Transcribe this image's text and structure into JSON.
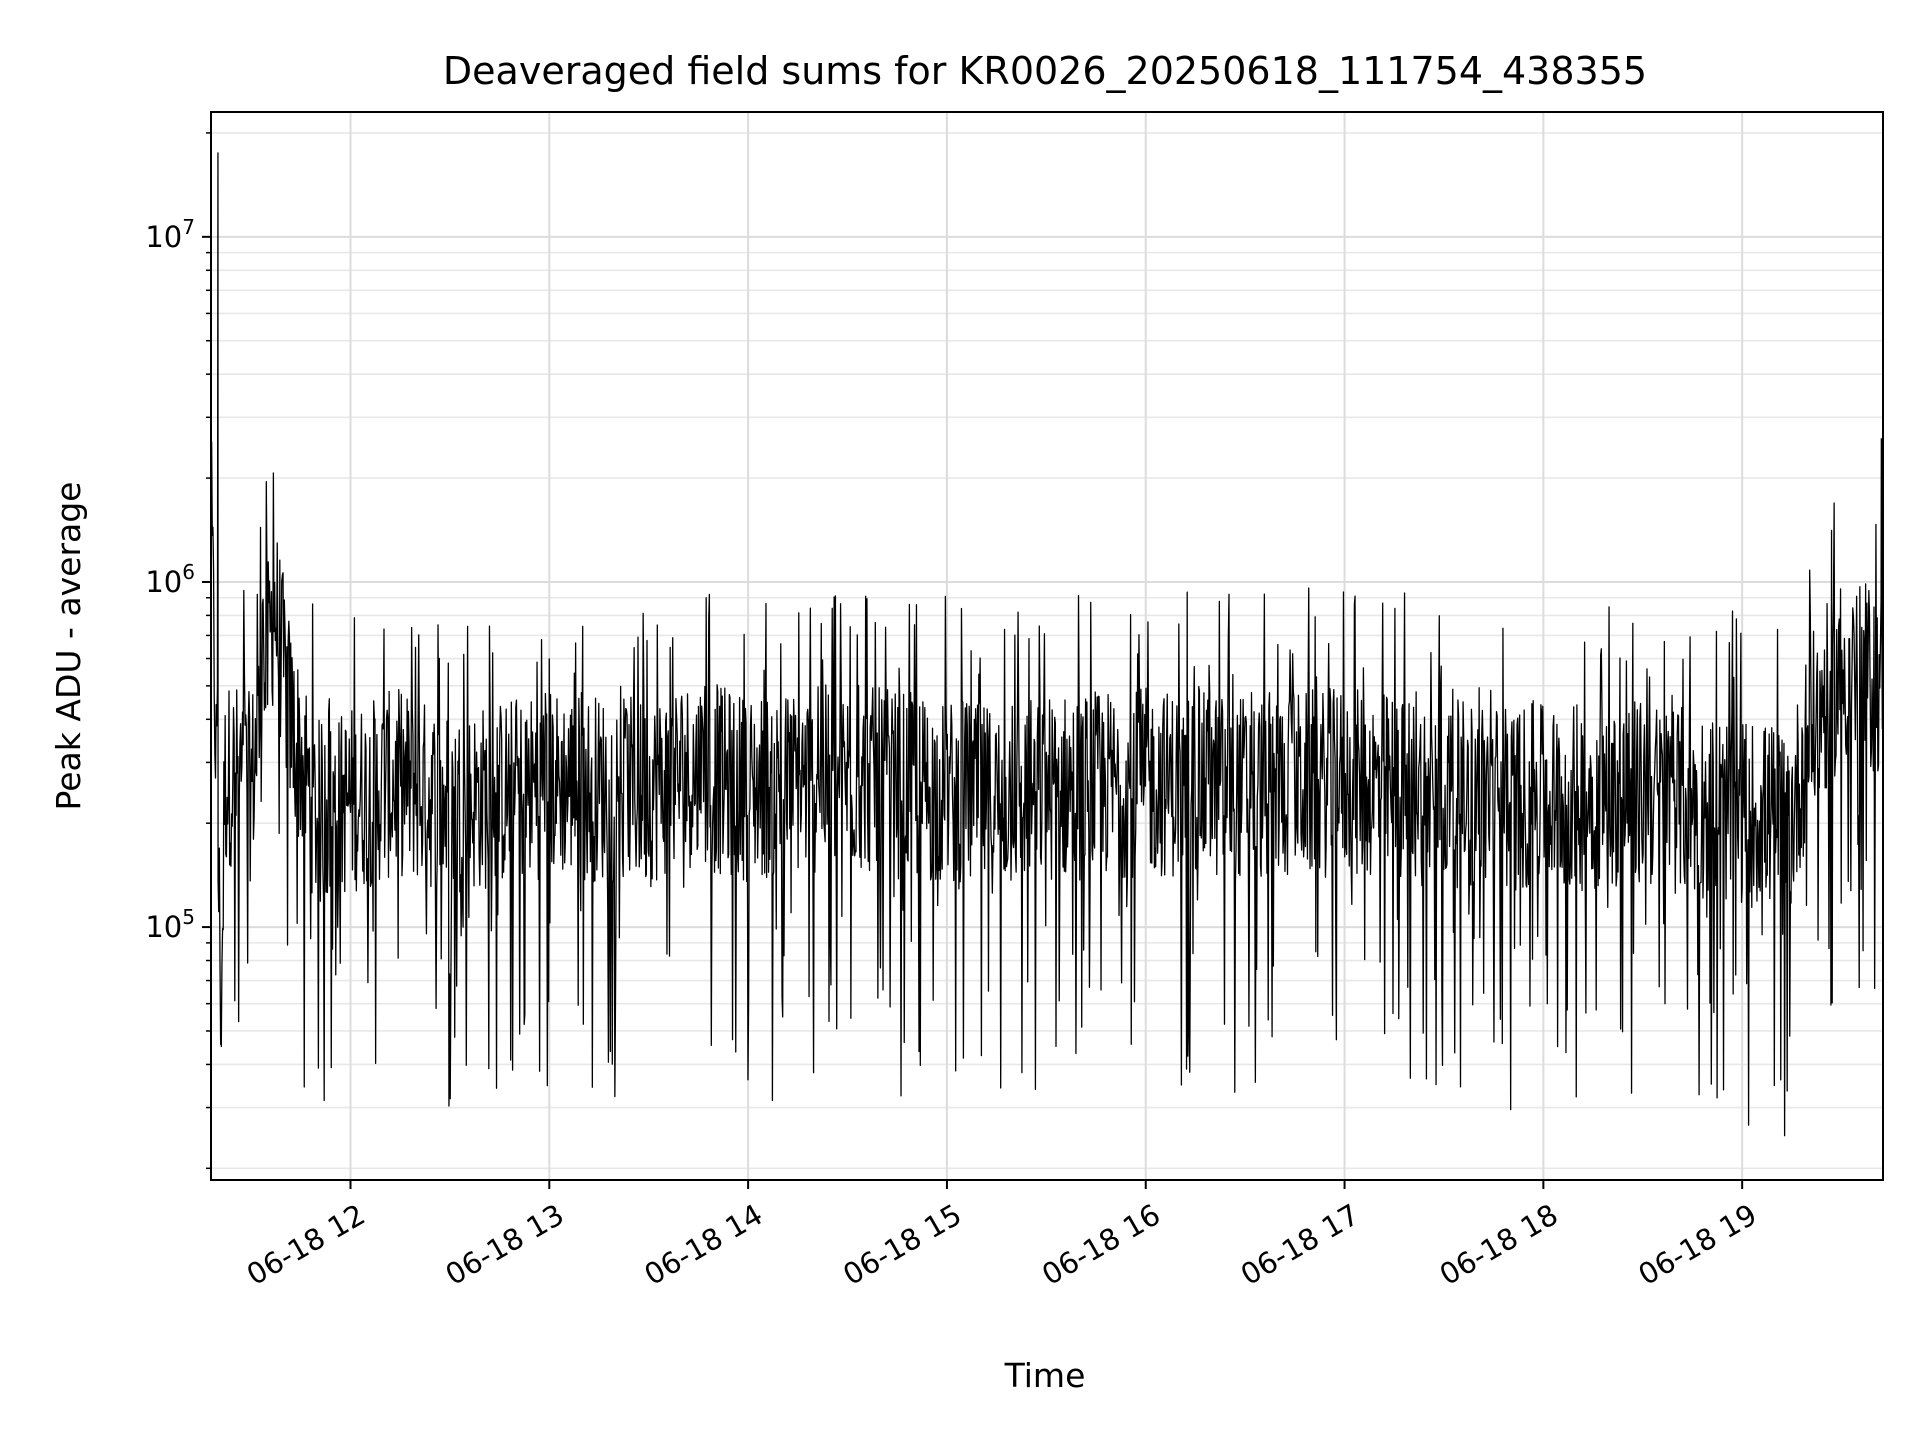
{
  "chart_data": {
    "type": "line",
    "title": "Deaveraged field sums for KR0026_20250618_111754_438355",
    "xlabel": "Time",
    "ylabel": "Peak ADU - average",
    "y_scale": "log",
    "ylim": [
      18500,
      23000000
    ],
    "xlim": [
      "2025-06-18 11:17:54",
      "2025-06-18 19:42:30"
    ],
    "grid": true,
    "line_color": "#000000",
    "x_ticks": [
      "06-18 12",
      "06-18 13",
      "06-18 14",
      "06-18 15",
      "06-18 16",
      "06-18 17",
      "06-18 18",
      "06-18 19"
    ],
    "y_ticks": [
      {
        "base": "10",
        "exp": "5",
        "value": 100000
      },
      {
        "base": "10",
        "exp": "6",
        "value": 1000000
      },
      {
        "base": "10",
        "exp": "7",
        "value": 10000000
      }
    ],
    "series": [
      {
        "name": "",
        "x": [
          "2025-06-18 11:18",
          "2025-06-18 11:20",
          "2025-06-18 11:21",
          "2025-06-18 11:22",
          "2025-06-18 11:24",
          "2025-06-18 11:30",
          "2025-06-18 11:37",
          "2025-06-18 11:42",
          "2025-06-18 11:50",
          "2025-06-18 12:00",
          "2025-06-18 12:15",
          "2025-06-18 12:30",
          "2025-06-18 13:00",
          "2025-06-18 13:30",
          "2025-06-18 13:40",
          "2025-06-18 14:00",
          "2025-06-18 14:30",
          "2025-06-18 15:00",
          "2025-06-18 15:15",
          "2025-06-18 15:30",
          "2025-06-18 16:00",
          "2025-06-18 16:30",
          "2025-06-18 17:00",
          "2025-06-18 17:30",
          "2025-06-18 18:00",
          "2025-06-18 18:30",
          "2025-06-18 19:00",
          "2025-06-18 19:15",
          "2025-06-18 19:20",
          "2025-06-18 19:30",
          "2025-06-18 19:40",
          "2025-06-18 19:42"
        ],
        "y": [
          1600000,
          17500000,
          60000,
          280000,
          300000,
          270000,
          920000,
          420000,
          220000,
          250000,
          280000,
          240000,
          280000,
          260000,
          300000,
          270000,
          290000,
          260000,
          250000,
          270000,
          280000,
          270000,
          280000,
          260000,
          250000,
          260000,
          230000,
          220000,
          380000,
          600000,
          550000,
          2600000
        ]
      }
    ]
  }
}
